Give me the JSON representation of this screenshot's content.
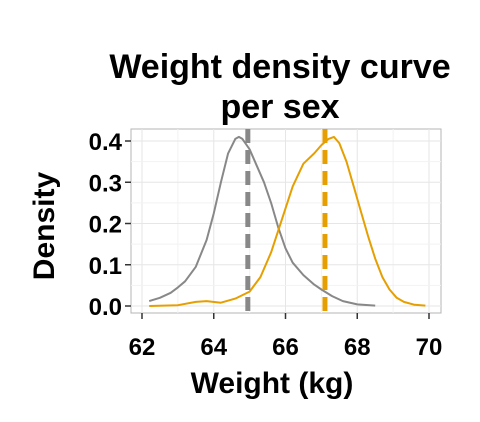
{
  "chart_data": {
    "type": "line",
    "title_lines": [
      "Weight density curve",
      "per sex"
    ],
    "xlabel": "Weight (kg)",
    "ylabel": "Density",
    "xlim": [
      62,
      70
    ],
    "ylim": [
      0,
      0.42
    ],
    "x_ticks": [
      "62",
      "64",
      "66",
      "68",
      "70"
    ],
    "y_ticks": [
      "0.0",
      "0.1",
      "0.2",
      "0.3",
      "0.4"
    ],
    "grid": true,
    "series": [
      {
        "color": "#888888",
        "mean": 64.95,
        "points": [
          [
            62.2,
            0.012
          ],
          [
            62.5,
            0.02
          ],
          [
            62.8,
            0.032
          ],
          [
            63.0,
            0.045
          ],
          [
            63.2,
            0.06
          ],
          [
            63.5,
            0.095
          ],
          [
            63.8,
            0.16
          ],
          [
            64.0,
            0.225
          ],
          [
            64.2,
            0.3
          ],
          [
            64.4,
            0.37
          ],
          [
            64.6,
            0.405
          ],
          [
            64.7,
            0.41
          ],
          [
            64.8,
            0.405
          ],
          [
            65.0,
            0.38
          ],
          [
            65.2,
            0.34
          ],
          [
            65.4,
            0.3
          ],
          [
            65.6,
            0.25
          ],
          [
            65.8,
            0.19
          ],
          [
            66.0,
            0.14
          ],
          [
            66.2,
            0.105
          ],
          [
            66.5,
            0.075
          ],
          [
            66.8,
            0.052
          ],
          [
            67.0,
            0.04
          ],
          [
            67.3,
            0.024
          ],
          [
            67.6,
            0.012
          ],
          [
            68.0,
            0.004
          ],
          [
            68.5,
            0.001
          ]
        ]
      },
      {
        "color": "#e69f00",
        "mean": 67.1,
        "points": [
          [
            62.2,
            0.0
          ],
          [
            63.0,
            0.002
          ],
          [
            63.5,
            0.01
          ],
          [
            63.8,
            0.012
          ],
          [
            64.2,
            0.008
          ],
          [
            64.6,
            0.018
          ],
          [
            65.0,
            0.035
          ],
          [
            65.3,
            0.07
          ],
          [
            65.6,
            0.13
          ],
          [
            65.9,
            0.21
          ],
          [
            66.2,
            0.29
          ],
          [
            66.5,
            0.345
          ],
          [
            66.8,
            0.37
          ],
          [
            67.0,
            0.39
          ],
          [
            67.2,
            0.405
          ],
          [
            67.35,
            0.41
          ],
          [
            67.5,
            0.395
          ],
          [
            67.7,
            0.35
          ],
          [
            67.9,
            0.29
          ],
          [
            68.1,
            0.23
          ],
          [
            68.3,
            0.17
          ],
          [
            68.5,
            0.115
          ],
          [
            68.7,
            0.07
          ],
          [
            68.9,
            0.04
          ],
          [
            69.1,
            0.02
          ],
          [
            69.3,
            0.01
          ],
          [
            69.6,
            0.003
          ],
          [
            69.9,
            0.001
          ]
        ]
      }
    ]
  }
}
